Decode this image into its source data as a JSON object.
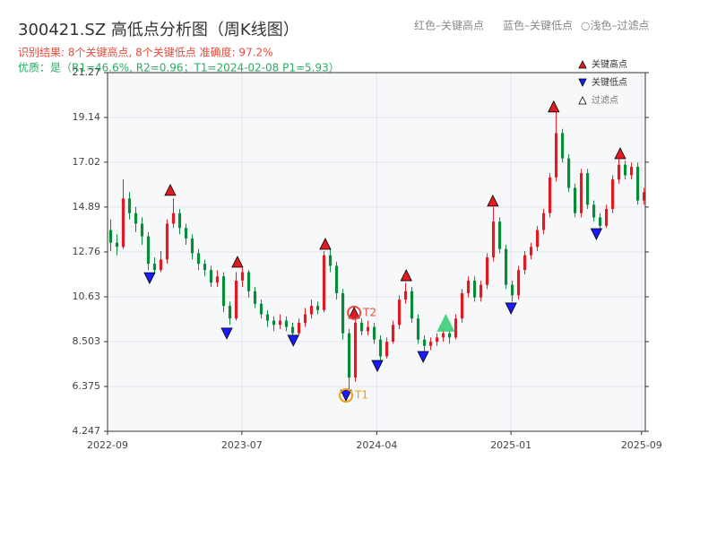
{
  "chart_data": {
    "type": "candlestick",
    "title": "300421.SZ 高低点分析图（周K线图）",
    "top_legend": [
      "红色–关键高点",
      "蓝色–关键低点",
      "○浅色–过滤点"
    ],
    "subtitle": "识别结果: 8个关键高点, 8个关键低点  准确度: 97.2%",
    "quality": "优质：是（R1=46.6%, R2=0.96；T1=2024-02-08 P1=5.93）",
    "up_color": "#e01b24",
    "down_color": "#0b8a3c",
    "xlim": [
      0,
      85.7
    ],
    "xticks": [
      {
        "value": 0,
        "label": "2022-09"
      },
      {
        "value": 21.4,
        "label": "2023-07"
      },
      {
        "value": 42.9,
        "label": "2024-04"
      },
      {
        "value": 64.3,
        "label": "2025-01"
      },
      {
        "value": 85.1,
        "label": "2025-09"
      }
    ],
    "ylim": [
      4.247,
      21.27
    ],
    "yticks": [
      4.247,
      6.375,
      8.503,
      10.63,
      12.76,
      14.89,
      17.02,
      19.14,
      21.27
    ],
    "grid": true,
    "ohlc": [
      [
        13.8,
        14.3,
        12.8,
        13.2
      ],
      [
        13.2,
        13.6,
        12.6,
        13.0
      ],
      [
        13.0,
        16.2,
        12.9,
        15.3
      ],
      [
        15.3,
        15.6,
        14.3,
        14.6
      ],
      [
        14.6,
        14.9,
        13.7,
        14.1
      ],
      [
        14.1,
        14.4,
        13.1,
        13.5
      ],
      [
        13.5,
        13.7,
        11.9,
        12.2
      ],
      [
        12.2,
        12.5,
        11.7,
        11.9
      ],
      [
        11.9,
        12.8,
        11.8,
        12.4
      ],
      [
        12.4,
        14.3,
        12.2,
        14.1
      ],
      [
        14.1,
        15.3,
        13.9,
        14.6
      ],
      [
        14.6,
        14.8,
        13.6,
        13.9
      ],
      [
        13.9,
        14.1,
        13.1,
        13.4
      ],
      [
        13.4,
        13.6,
        12.4,
        12.7
      ],
      [
        12.7,
        12.9,
        11.9,
        12.2
      ],
      [
        12.2,
        12.4,
        11.6,
        11.9
      ],
      [
        11.9,
        12.1,
        11.1,
        11.3
      ],
      [
        11.3,
        11.9,
        11.1,
        11.6
      ],
      [
        11.6,
        11.8,
        9.9,
        10.2
      ],
      [
        10.2,
        10.4,
        9.3,
        9.6
      ],
      [
        9.6,
        11.8,
        9.5,
        11.4
      ],
      [
        11.4,
        12.0,
        11.1,
        11.8
      ],
      [
        11.8,
        11.9,
        10.6,
        10.9
      ],
      [
        10.9,
        11.1,
        10.1,
        10.3
      ],
      [
        10.3,
        10.5,
        9.6,
        9.8
      ],
      [
        9.8,
        10.0,
        9.2,
        9.5
      ],
      [
        9.5,
        9.7,
        9.0,
        9.3
      ],
      [
        9.3,
        9.8,
        9.1,
        9.5
      ],
      [
        9.5,
        9.7,
        9.0,
        9.2
      ],
      [
        9.2,
        9.4,
        8.7,
        8.9
      ],
      [
        8.9,
        9.6,
        8.8,
        9.4
      ],
      [
        9.4,
        10.1,
        9.2,
        9.8
      ],
      [
        9.8,
        10.5,
        9.6,
        10.2
      ],
      [
        10.2,
        10.4,
        9.8,
        10.0
      ],
      [
        10.0,
        12.8,
        9.9,
        12.6
      ],
      [
        12.6,
        12.9,
        11.8,
        12.1
      ],
      [
        12.1,
        12.3,
        10.5,
        10.8
      ],
      [
        10.8,
        11.0,
        8.6,
        8.9
      ],
      [
        8.9,
        9.1,
        6.1,
        6.8
      ],
      [
        6.8,
        9.6,
        6.6,
        9.4
      ],
      [
        9.4,
        9.6,
        8.8,
        9.0
      ],
      [
        9.0,
        9.5,
        8.8,
        9.2
      ],
      [
        9.2,
        9.4,
        8.4,
        8.6
      ],
      [
        8.6,
        8.8,
        7.6,
        7.8
      ],
      [
        7.8,
        8.7,
        7.7,
        8.5
      ],
      [
        8.5,
        9.5,
        8.4,
        9.3
      ],
      [
        9.3,
        10.7,
        9.1,
        10.5
      ],
      [
        10.5,
        11.3,
        10.3,
        10.9
      ],
      [
        10.9,
        11.1,
        9.4,
        9.6
      ],
      [
        9.6,
        9.8,
        8.4,
        8.6
      ],
      [
        8.6,
        8.8,
        8.0,
        8.3
      ],
      [
        8.3,
        8.7,
        8.1,
        8.5
      ],
      [
        8.5,
        8.9,
        8.3,
        8.7
      ],
      [
        8.7,
        9.1,
        8.5,
        8.9
      ],
      [
        8.9,
        9.0,
        8.4,
        8.7
      ],
      [
        8.7,
        9.8,
        8.6,
        9.6
      ],
      [
        9.6,
        11.0,
        9.4,
        10.8
      ],
      [
        10.8,
        11.6,
        10.6,
        11.4
      ],
      [
        11.4,
        11.6,
        10.4,
        10.6
      ],
      [
        10.6,
        11.4,
        10.4,
        11.2
      ],
      [
        11.2,
        12.7,
        11.0,
        12.5
      ],
      [
        12.5,
        14.9,
        12.3,
        14.2
      ],
      [
        14.2,
        14.4,
        12.7,
        12.9
      ],
      [
        12.9,
        13.1,
        11.0,
        11.2
      ],
      [
        11.2,
        11.4,
        10.4,
        10.7
      ],
      [
        10.7,
        12.1,
        10.5,
        11.9
      ],
      [
        11.9,
        12.8,
        11.7,
        12.6
      ],
      [
        12.6,
        13.2,
        12.4,
        13.0
      ],
      [
        13.0,
        14.0,
        12.8,
        13.8
      ],
      [
        13.8,
        14.8,
        13.6,
        14.6
      ],
      [
        14.6,
        16.5,
        14.4,
        16.3
      ],
      [
        16.3,
        19.5,
        16.1,
        18.4
      ],
      [
        18.4,
        18.6,
        17.0,
        17.2
      ],
      [
        17.2,
        17.4,
        15.6,
        15.8
      ],
      [
        15.8,
        16.0,
        14.4,
        14.6
      ],
      [
        14.6,
        16.7,
        14.4,
        16.5
      ],
      [
        16.5,
        16.7,
        14.8,
        15.0
      ],
      [
        15.0,
        15.2,
        14.2,
        14.4
      ],
      [
        14.4,
        14.6,
        13.8,
        14.0
      ],
      [
        14.0,
        15.0,
        13.9,
        14.8
      ],
      [
        14.8,
        16.4,
        14.6,
        16.2
      ],
      [
        16.2,
        17.3,
        16.0,
        16.9
      ],
      [
        16.9,
        17.1,
        16.2,
        16.4
      ],
      [
        16.4,
        17.0,
        16.2,
        16.8
      ],
      [
        16.8,
        17.0,
        15.0,
        15.2
      ],
      [
        15.2,
        15.8,
        15.0,
        15.6
      ]
    ],
    "series": [
      {
        "name": "关键高点",
        "color": "#e01b24",
        "marker": "up",
        "x": [
          10.0,
          20.7,
          34.7,
          39.3,
          47.6,
          61.4,
          71.1,
          81.7
        ],
        "values": [
          15.7,
          12.29,
          13.14,
          9.87,
          11.65,
          15.19,
          19.66,
          17.44
        ]
      },
      {
        "name": "关键低点",
        "color": "#1a1aff",
        "marker": "down",
        "x": [
          6.7,
          19.0,
          29.6,
          38.0,
          43.0,
          50.3,
          64.3,
          77.9
        ],
        "values": [
          11.52,
          8.89,
          8.55,
          5.95,
          7.35,
          7.78,
          10.08,
          13.61
        ]
      },
      {
        "name": "过滤点",
        "color": "#2ecc71",
        "marker": "filtered",
        "x": [
          53.9
        ],
        "values": [
          9.4
        ]
      }
    ],
    "annotations": [
      {
        "text": "T1",
        "x": 38.0,
        "y": 5.95,
        "color": "#f39c12"
      },
      {
        "text": "T2",
        "x": 39.3,
        "y": 9.87,
        "color": "#e74c3c"
      }
    ]
  }
}
